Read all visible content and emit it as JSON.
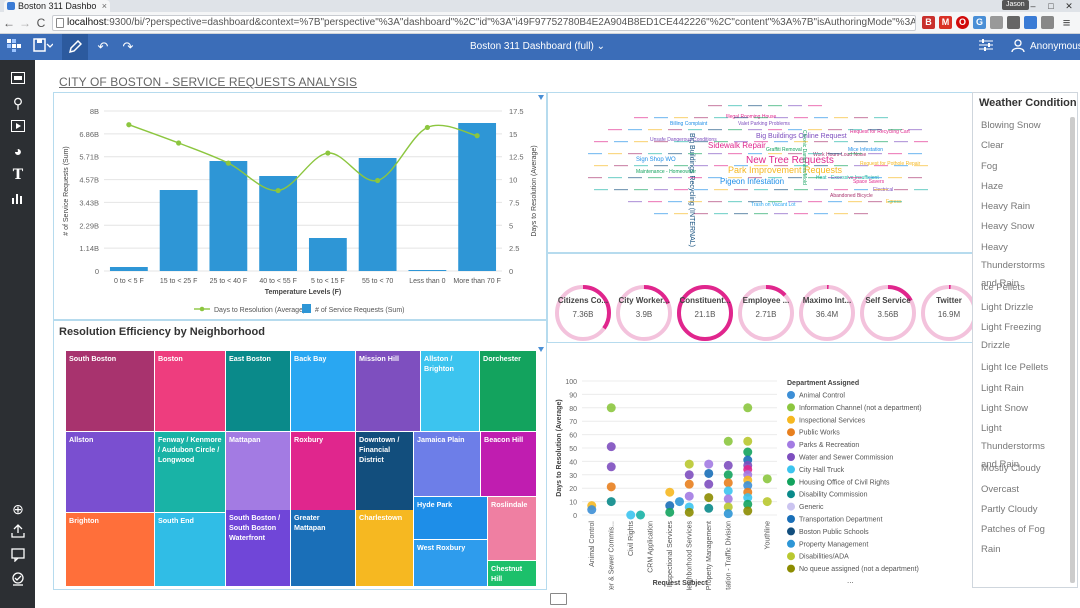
{
  "browser": {
    "tab_title": "Boston 311 Dashbo",
    "tab_close": "×",
    "url_host": "localhost",
    "url_rest": ":9300/bi/?perspective=dashboard&context=%7B\"perspective\"%3A\"dashboard\"%2C\"id\"%3A\"i49F97752780B4E2A904B8ED1CE442226\"%2C\"content\"%3A%7B\"isAuthoringMode\"%3Atrue%2C\"id\"%3A\"iD938",
    "user_badge": "Jason",
    "win_minimize": "–",
    "win_maximize": "□",
    "win_close": "✕",
    "back": "←",
    "forward": "→",
    "reload": "C",
    "ext_labels": [
      "B",
      "M",
      "O",
      "G"
    ]
  },
  "app": {
    "dashboard_title": "Boston 311 Dashboard (full)",
    "user_name": "Anonymous",
    "title_caret": "⌄",
    "accent": "#3b6db8"
  },
  "page": {
    "title": "CITY OF BOSTON - SERVICE REQUESTS ANALYSIS"
  },
  "weather": {
    "title": "Weather Condition",
    "items": [
      "Blowing Snow",
      "Clear",
      "Fog",
      "Haze",
      "Heavy Rain",
      "Heavy Snow",
      "Heavy Thunderstorms and Rain",
      "Ice Pellets",
      "Light Drizzle",
      "Light Freezing Drizzle",
      "Light Ice Pellets",
      "Light Rain",
      "Light Snow",
      "Light Thunderstorms and Rain",
      "Mostly Cloudy",
      "Overcast",
      "Partly Cloudy",
      "Patches of Fog",
      "Rain"
    ]
  },
  "treemap": {
    "title": "Resolution Efficiency by Neighborhood",
    "tiles": [
      {
        "label": "South Boston",
        "color": "#a8336e"
      },
      {
        "label": "Boston",
        "color": "#ee3d7e"
      },
      {
        "label": "East Boston",
        "color": "#0a8a8a"
      },
      {
        "label": "Back Bay",
        "color": "#29a7f2"
      },
      {
        "label": "Mission Hill",
        "color": "#7e4fbf"
      },
      {
        "label": "Allston / Brighton",
        "color": "#3cc4ef"
      },
      {
        "label": "Dorchester",
        "color": "#13a35e"
      },
      {
        "label": "Allston",
        "color": "#7a4fd0"
      },
      {
        "label": "Fenway / Kenmore / Audubon Circle / Longwood",
        "color": "#19b3a6"
      },
      {
        "label": "Mattapan",
        "color": "#a37be3"
      },
      {
        "label": "Roxbury",
        "color": "#e0268d"
      },
      {
        "label": "Downtown / Financial District",
        "color": "#124e7d"
      },
      {
        "label": "Jamaica Plain",
        "color": "#6d7ee8"
      },
      {
        "label": "Beacon Hill",
        "color": "#c01db0"
      },
      {
        "label": "Brighton",
        "color": "#ff6f3a"
      },
      {
        "label": "South End",
        "color": "#30bde6"
      },
      {
        "label": "South Boston / South Boston Waterfront",
        "color": "#7046d8"
      },
      {
        "label": "Greater Mattapan",
        "color": "#1a6fb8"
      },
      {
        "label": "Charlestown",
        "color": "#f6b821"
      },
      {
        "label": "Hyde Park",
        "color": "#1e8ee8"
      },
      {
        "label": "Roslindale",
        "color": "#ef7fa2"
      },
      {
        "label": "West Roxbury",
        "color": "#2e9ced"
      },
      {
        "label": "Chestnut Hill",
        "color": "#1cc06b"
      }
    ]
  },
  "kpis": [
    {
      "label": "Citizens Co...",
      "value": "7.36B",
      "fraction": 0.35
    },
    {
      "label": "City Worker...",
      "value": "3.9B",
      "fraction": 0.19
    },
    {
      "label": "Constituent...",
      "value": "21.1B",
      "fraction": 1.0
    },
    {
      "label": "Employee ...",
      "value": "2.71B",
      "fraction": 0.13
    },
    {
      "label": "Maximo Int...",
      "value": "36.4M",
      "fraction": 0.01
    },
    {
      "label": "Self Service",
      "value": "3.56B",
      "fraction": 0.17
    },
    {
      "label": "Twitter",
      "value": "16.9M",
      "fraction": 0.01
    }
  ],
  "wordcloud": {
    "words": [
      {
        "text": "New Tree Requests",
        "size": 10,
        "color": "#e0268d"
      },
      {
        "text": "Park Improvement Requests",
        "size": 9,
        "color": "#f6b821"
      },
      {
        "text": "Sidewalk Repair",
        "size": 8,
        "color": "#e0268d"
      },
      {
        "text": "Pigeon Infestation",
        "size": 8,
        "color": "#1e8ee8"
      },
      {
        "text": "Big Buildings Online Request",
        "size": 7,
        "color": "#7e4fbf"
      },
      {
        "text": "Big Buildings Recycling (INTERNAL)",
        "size": 7,
        "color": "#124e7d"
      },
      {
        "text": "Sign Shop WO",
        "size": 6,
        "color": "#1e8ee8"
      },
      {
        "text": "Illegal Rooming House",
        "size": 5,
        "color": "#e0268d"
      },
      {
        "text": "Valet Parking Problems",
        "size": 5,
        "color": "#7e4fbf"
      },
      {
        "text": "Graffiti Removal",
        "size": 5,
        "color": "#13a35e"
      },
      {
        "text": "Trash on Vacant Lot",
        "size": 5,
        "color": "#29a7f2"
      },
      {
        "text": "Abandoned Bicycle",
        "size": 5,
        "color": "#a8336e"
      },
      {
        "text": "Request for Recycling Cart",
        "size": 5,
        "color": "#e0268d"
      },
      {
        "text": "Billing Complaint",
        "size": 5,
        "color": "#1e8ee8"
      },
      {
        "text": "Unsafe Dangerous Conditions",
        "size": 5,
        "color": "#7e4fbf"
      },
      {
        "text": "Maintenance - Homeowner",
        "size": 5,
        "color": "#13a35e"
      },
      {
        "text": "Work Hours-Loud Noise",
        "size": 5,
        "color": "#a8336e"
      },
      {
        "text": "Request for Pothole Repair",
        "size": 5,
        "color": "#f6b821"
      },
      {
        "text": "Heat - Excessive Insufficient",
        "size": 5,
        "color": "#19b3a6"
      },
      {
        "text": "Mice Infestation",
        "size": 5,
        "color": "#1e8ee8"
      },
      {
        "text": "Space Savers",
        "size": 5,
        "color": "#e0268d"
      },
      {
        "text": "Chronic Dampness/Mold",
        "size": 5,
        "color": "#13a35e"
      },
      {
        "text": "Electrical",
        "size": 5,
        "color": "#7e4fbf"
      },
      {
        "text": "Egress",
        "size": 5,
        "color": "#f6b821"
      }
    ]
  },
  "chart_data": [
    {
      "type": "bar",
      "title": "",
      "xlabel": "Temperature Levels (F)",
      "ylabel": "# of Service Requests (Sum)",
      "y2label": "Days to Resolution (Average)",
      "categories": [
        "0 to < 5 F",
        "15 to < 25 F",
        "25 to < 40 F",
        "40 to < 55 F",
        "5 to < 15 F",
        "55 to < 70",
        "Less than 0",
        "More than 70 F"
      ],
      "yticks": [
        "0",
        "1.14B",
        "2.29B",
        "3.43B",
        "4.57B",
        "5.71B",
        "6.86B",
        "8B"
      ],
      "y2ticks": [
        "0",
        "2.5",
        "5",
        "7.5",
        "10",
        "12.5",
        "15",
        "17.5"
      ],
      "ylim": [
        0,
        8000000000
      ],
      "y2lim": [
        0,
        17.5
      ],
      "series": [
        {
          "name": "# of Service Requests (Sum)",
          "type": "bar",
          "color": "#2e96d6",
          "values": [
            200000000,
            4050000000,
            5500000000,
            4750000000,
            1650000000,
            5650000000,
            50000000,
            7400000000
          ]
        },
        {
          "name": "Days to Resolution (Average)",
          "type": "line",
          "color": "#8cc63f",
          "values": [
            16.0,
            14.0,
            11.8,
            8.8,
            12.9,
            9.9,
            15.7,
            14.8
          ]
        }
      ],
      "legend_position": "bottom"
    },
    {
      "type": "scatter",
      "title": "",
      "xlabel": "Request Subject",
      "ylabel": "Days to Resolution (Average)",
      "legend_title": "Department Assigned",
      "ylim": [
        0,
        100
      ],
      "yticks": [
        "0",
        "10",
        "20",
        "30",
        "40",
        "50",
        "60",
        "70",
        "80",
        "90",
        "100"
      ],
      "categories": [
        "Animal Control",
        "Boston Water & Sewer Commis...",
        "Civil Rights",
        "CRM Application",
        "Inspectional Services",
        "Neighborhood Services",
        "Property Management",
        "Transportation - Traffic Division",
        "Youthline"
      ],
      "legend": [
        {
          "name": "Animal Control",
          "color": "#3d8fd6"
        },
        {
          "name": "Information Channel (not a department)",
          "color": "#8cc63f"
        },
        {
          "name": "Inspectional Services",
          "color": "#f6b821"
        },
        {
          "name": "Public Works",
          "color": "#e8801f"
        },
        {
          "name": "Parks & Recreation",
          "color": "#a37be3"
        },
        {
          "name": "Water and Sewer Commission",
          "color": "#7e4fbf"
        },
        {
          "name": "City Hall Truck",
          "color": "#3cc4ef"
        },
        {
          "name": "Housing Office of Civil Rights",
          "color": "#13a35e"
        },
        {
          "name": "Disability Commission",
          "color": "#0a8a8a"
        },
        {
          "name": "Generic",
          "color": "#cbc4f0"
        },
        {
          "name": "Transportation Department",
          "color": "#1a6fb8"
        },
        {
          "name": "Boston Public Schools",
          "color": "#124e7d"
        },
        {
          "name": "Property Management",
          "color": "#2e96d6"
        },
        {
          "name": "Disabilities/ADA",
          "color": "#b9c830"
        },
        {
          "name": "No queue assigned (not a department)",
          "color": "#8c8c00"
        }
      ],
      "legend_more": "...",
      "points": [
        {
          "x": 1,
          "y": 80,
          "color": "#8cc63f"
        },
        {
          "x": 1,
          "y": 51,
          "color": "#7e4fbf"
        },
        {
          "x": 1,
          "y": 36,
          "color": "#7e4fbf"
        },
        {
          "x": 1,
          "y": 21,
          "color": "#e8801f"
        },
        {
          "x": 1,
          "y": 10,
          "color": "#0a8a8a"
        },
        {
          "x": 0,
          "y": 7,
          "color": "#f6b821"
        },
        {
          "x": 0,
          "y": 4,
          "color": "#3d8fd6"
        },
        {
          "x": 2,
          "y": 0,
          "color": "#3cc4ef"
        },
        {
          "x": 2.5,
          "y": 0,
          "color": "#19b3a6"
        },
        {
          "x": 4,
          "y": 17,
          "color": "#f6b821"
        },
        {
          "x": 4,
          "y": 7,
          "color": "#1a6fb8"
        },
        {
          "x": 4,
          "y": 2,
          "color": "#13a35e"
        },
        {
          "x": 4.5,
          "y": 10,
          "color": "#2e96d6"
        },
        {
          "x": 5,
          "y": 38,
          "color": "#b9c830"
        },
        {
          "x": 5,
          "y": 30,
          "color": "#7e4fbf"
        },
        {
          "x": 5,
          "y": 23,
          "color": "#e8801f"
        },
        {
          "x": 5,
          "y": 14,
          "color": "#a37be3"
        },
        {
          "x": 5,
          "y": 6,
          "color": "#3cc4ef"
        },
        {
          "x": 5,
          "y": 2,
          "color": "#8c8c00"
        },
        {
          "x": 6,
          "y": 38,
          "color": "#a37be3"
        },
        {
          "x": 6,
          "y": 31,
          "color": "#1a6fb8"
        },
        {
          "x": 6,
          "y": 23,
          "color": "#7e4fbf"
        },
        {
          "x": 6,
          "y": 13,
          "color": "#8c8c00"
        },
        {
          "x": 6,
          "y": 5,
          "color": "#0a8a8a"
        },
        {
          "x": 7,
          "y": 55,
          "color": "#8cc63f"
        },
        {
          "x": 7,
          "y": 37,
          "color": "#7e4fbf"
        },
        {
          "x": 7,
          "y": 30,
          "color": "#13a35e"
        },
        {
          "x": 7,
          "y": 24,
          "color": "#e8801f"
        },
        {
          "x": 7,
          "y": 18,
          "color": "#3cc4ef"
        },
        {
          "x": 7,
          "y": 12,
          "color": "#a37be3"
        },
        {
          "x": 7,
          "y": 6,
          "color": "#b9c830"
        },
        {
          "x": 7,
          "y": 1,
          "color": "#2e96d6"
        },
        {
          "x": 8,
          "y": 80,
          "color": "#8cc63f"
        },
        {
          "x": 8,
          "y": 55,
          "color": "#b9c830"
        },
        {
          "x": 8,
          "y": 47,
          "color": "#13a35e"
        },
        {
          "x": 8,
          "y": 41,
          "color": "#1a6fb8"
        },
        {
          "x": 8,
          "y": 37,
          "color": "#7e4fbf"
        },
        {
          "x": 8,
          "y": 34,
          "color": "#e0268d"
        },
        {
          "x": 8,
          "y": 30,
          "color": "#a37be3"
        },
        {
          "x": 8,
          "y": 26,
          "color": "#f6b821"
        },
        {
          "x": 8,
          "y": 22,
          "color": "#3d8fd6"
        },
        {
          "x": 8,
          "y": 17,
          "color": "#e8801f"
        },
        {
          "x": 8,
          "y": 13,
          "color": "#3cc4ef"
        },
        {
          "x": 8,
          "y": 8,
          "color": "#13a35e"
        },
        {
          "x": 8,
          "y": 3,
          "color": "#8c8c00"
        },
        {
          "x": 9,
          "y": 27,
          "color": "#8cc63f"
        },
        {
          "x": 9,
          "y": 10,
          "color": "#b9c830"
        }
      ]
    }
  ]
}
